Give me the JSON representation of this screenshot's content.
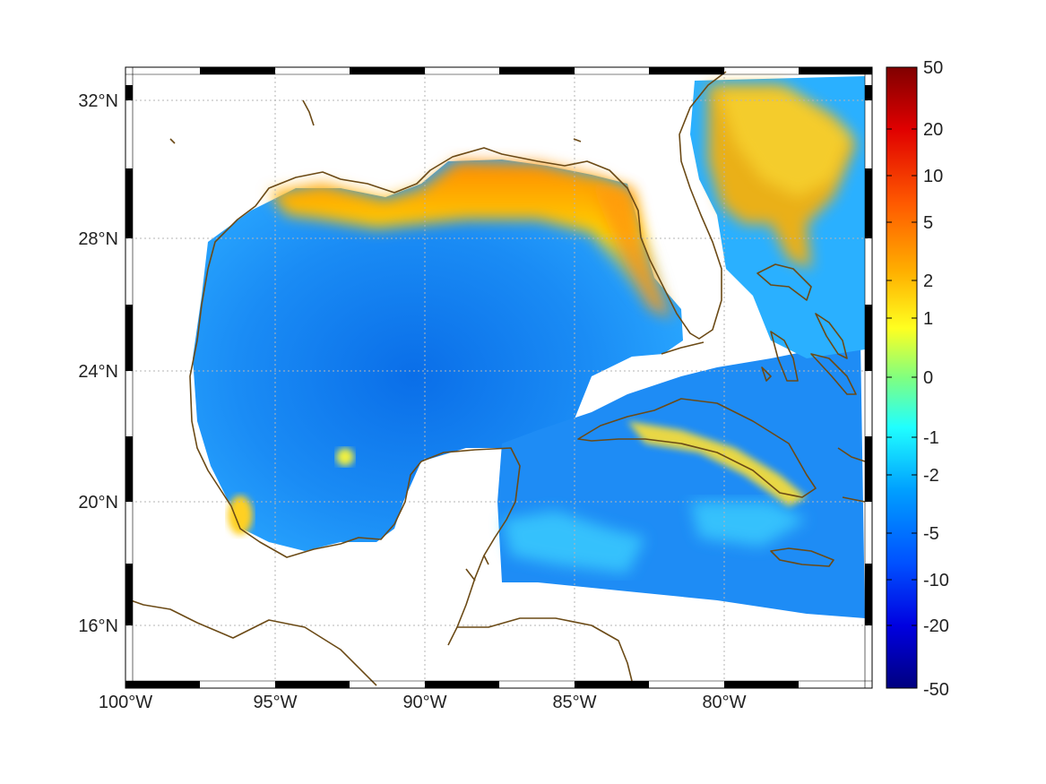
{
  "map": {
    "longitude_labels": [
      "100°W",
      "95°W",
      "90°W",
      "85°W",
      "80°W"
    ],
    "latitude_labels": [
      "32°N",
      "28°N",
      "24°N",
      "20°N",
      "16°N"
    ],
    "longitude_values": [
      -100,
      -95,
      -90,
      -85,
      -80
    ],
    "latitude_values": [
      32,
      28,
      24,
      20,
      16
    ],
    "extent": {
      "lon_min": -100,
      "lon_max": -75,
      "lat_min": 14,
      "lat_max": 33
    },
    "grid": "dotted",
    "coastline_color": "#6b4a16",
    "land_color": "#ffffff"
  },
  "colorbar": {
    "tick_labels": [
      "50",
      "20",
      "10",
      "5",
      "2",
      "1",
      "0",
      "-1",
      "-2",
      "-5",
      "-10",
      "-20",
      "-50"
    ],
    "colors": [
      "#800000",
      "#ff0000",
      "#ff8000",
      "#ffff00",
      "#80ff80",
      "#00ffff",
      "#0080ff",
      "#0000ff",
      "#00008f"
    ]
  }
}
